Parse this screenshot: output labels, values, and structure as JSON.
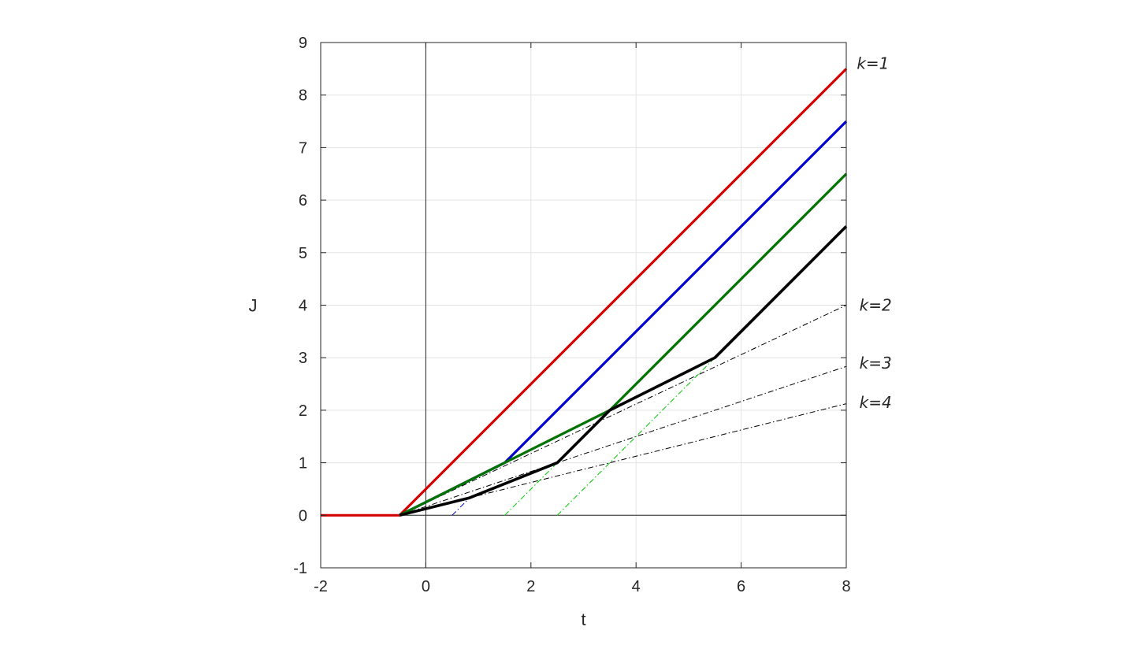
{
  "chart_data": {
    "type": "line",
    "xlabel": "t",
    "ylabel": "J",
    "xlim": [
      -2,
      8
    ],
    "ylim": [
      -1,
      9
    ],
    "xticks": [
      -2,
      0,
      2,
      4,
      6,
      8
    ],
    "xtick_labels": [
      "-2",
      "0",
      "2",
      "4",
      "6",
      "8"
    ],
    "yticks": [
      -1,
      0,
      1,
      2,
      3,
      4,
      5,
      6,
      7,
      8,
      9
    ],
    "ytick_labels": [
      "-1",
      "0",
      "1",
      "2",
      "3",
      "4",
      "5",
      "6",
      "7",
      "8",
      "9"
    ],
    "grid": true,
    "reference_lines": {
      "x": 0,
      "y": 0
    },
    "series": [
      {
        "color": "#d40000",
        "style": "solid",
        "width": 3.2,
        "x": [
          -2,
          -0.5,
          8
        ],
        "y": [
          0,
          0,
          8.5
        ]
      },
      {
        "color": "#0000cc",
        "style": "solid",
        "width": 3.2,
        "x": [
          -0.5,
          1.5,
          8
        ],
        "y": [
          0,
          1,
          7.5
        ]
      },
      {
        "color": "#007300",
        "style": "solid",
        "width": 3.2,
        "x": [
          -0.5,
          3.5,
          8
        ],
        "y": [
          0,
          2,
          6.5
        ]
      },
      {
        "color": "#000000",
        "style": "solid",
        "width": 3.6,
        "x": [
          -0.5,
          0.833,
          2.5,
          3.5,
          5.5,
          8
        ],
        "y": [
          0,
          0.333,
          1,
          2,
          3,
          5.5
        ]
      },
      {
        "color": "#000000",
        "style": "dashdot",
        "width": 1,
        "x": [
          -0.5,
          8
        ],
        "y": [
          0,
          4.0
        ]
      },
      {
        "color": "#000000",
        "style": "dashdot",
        "width": 1,
        "x": [
          -0.5,
          8
        ],
        "y": [
          0,
          2.833
        ]
      },
      {
        "color": "#000000",
        "style": "dashdot",
        "width": 1,
        "x": [
          -0.5,
          8
        ],
        "y": [
          0,
          2.125
        ]
      },
      {
        "color": "#0000cc",
        "style": "dashdot",
        "width": 1,
        "x": [
          0.5,
          0.833
        ],
        "y": [
          0,
          0.333
        ]
      },
      {
        "color": "#00cc00",
        "style": "dashdot",
        "width": 1,
        "x": [
          1.5,
          2.5
        ],
        "y": [
          0,
          1
        ]
      },
      {
        "color": "#00cc00",
        "style": "dashdot",
        "width": 1,
        "x": [
          2.5,
          5.5
        ],
        "y": [
          0,
          3
        ]
      }
    ],
    "annotations": [
      {
        "text": "k=1",
        "x": 8.2,
        "y": 8.6
      },
      {
        "text": "k=2",
        "x": 8.25,
        "y": 4.0
      },
      {
        "text": "k=3",
        "x": 8.25,
        "y": 2.9
      },
      {
        "text": "k=4",
        "x": 8.25,
        "y": 2.15
      }
    ]
  }
}
